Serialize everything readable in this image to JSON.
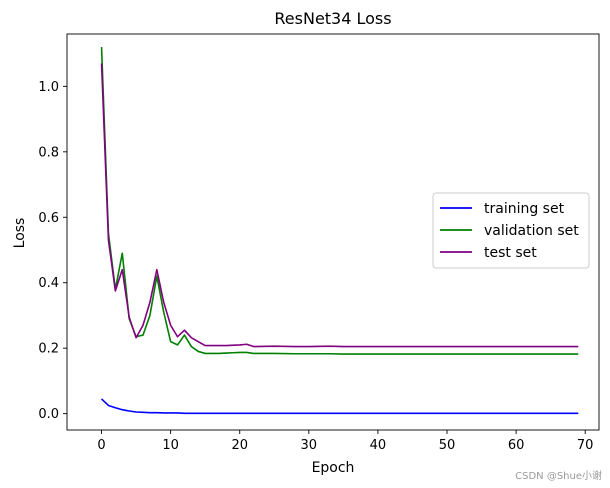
{
  "chart_data": {
    "type": "line",
    "title": "ResNet34 Loss",
    "xlabel": "Epoch",
    "ylabel": "Loss",
    "xlim": [
      -5,
      72
    ],
    "ylim": [
      -0.05,
      1.16
    ],
    "xticks": [
      0,
      10,
      20,
      30,
      40,
      50,
      60,
      70
    ],
    "yticks": [
      0.0,
      0.2,
      0.4,
      0.6,
      0.8,
      1.0
    ],
    "ytick_labels": [
      "0.0",
      "0.2",
      "0.4",
      "0.6",
      "0.8",
      "1.0"
    ],
    "legend_position": "center-right",
    "series": [
      {
        "name": "training set",
        "color": "#0000ff",
        "x": [
          0,
          1,
          2,
          3,
          4,
          5,
          6,
          7,
          8,
          9,
          10,
          11,
          12,
          13,
          14,
          15,
          20,
          25,
          30,
          40,
          50,
          60,
          69
        ],
        "y": [
          0.045,
          0.025,
          0.018,
          0.012,
          0.008,
          0.005,
          0.004,
          0.003,
          0.003,
          0.002,
          0.002,
          0.002,
          0.001,
          0.001,
          0.001,
          0.001,
          0.001,
          0.001,
          0.001,
          0.001,
          0.001,
          0.001,
          0.001
        ]
      },
      {
        "name": "validation set",
        "color": "#008000",
        "x": [
          0,
          1,
          2,
          3,
          4,
          5,
          6,
          7,
          8,
          9,
          10,
          11,
          12,
          13,
          14,
          15,
          16,
          17,
          18,
          19,
          20,
          21,
          22,
          25,
          28,
          30,
          33,
          35,
          40,
          50,
          60,
          69
        ],
        "y": [
          1.12,
          0.55,
          0.38,
          0.49,
          0.29,
          0.235,
          0.24,
          0.3,
          0.42,
          0.31,
          0.22,
          0.21,
          0.24,
          0.205,
          0.19,
          0.184,
          0.184,
          0.184,
          0.185,
          0.186,
          0.187,
          0.187,
          0.184,
          0.184,
          0.183,
          0.183,
          0.183,
          0.182,
          0.182,
          0.182,
          0.182,
          0.182
        ]
      },
      {
        "name": "test set",
        "color": "#800080",
        "x": [
          0,
          1,
          2,
          3,
          4,
          5,
          6,
          7,
          8,
          9,
          10,
          11,
          12,
          13,
          14,
          15,
          16,
          18,
          20,
          21,
          22,
          25,
          28,
          30,
          33,
          35,
          40,
          50,
          60,
          69
        ],
        "y": [
          1.07,
          0.53,
          0.375,
          0.44,
          0.295,
          0.232,
          0.27,
          0.34,
          0.44,
          0.34,
          0.27,
          0.235,
          0.255,
          0.232,
          0.22,
          0.208,
          0.208,
          0.208,
          0.21,
          0.212,
          0.205,
          0.206,
          0.205,
          0.205,
          0.206,
          0.205,
          0.205,
          0.205,
          0.205,
          0.205
        ]
      }
    ]
  },
  "watermark": "CSDN @Shue小谢"
}
